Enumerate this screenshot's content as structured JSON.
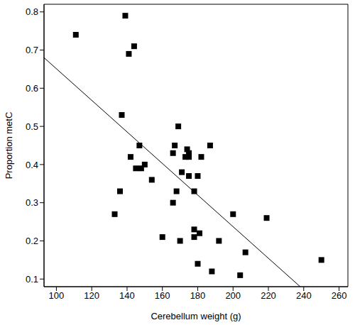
{
  "chart_data": {
    "type": "scatter",
    "x_label": "Cerebellum weight (g)",
    "y_label": "Proportion metC",
    "xlim": [
      93,
      265
    ],
    "ylim": [
      0.08,
      0.82
    ],
    "xticks": [
      100,
      120,
      140,
      160,
      180,
      200,
      220,
      240,
      260
    ],
    "yticks": [
      0.1,
      0.2,
      0.3,
      0.4,
      0.5,
      0.6,
      0.7,
      0.8
    ],
    "series": [
      {
        "type": "scatter",
        "marker": "square",
        "color": "#000000",
        "x": [
          111,
          139,
          141,
          144,
          137,
          136,
          133,
          142,
          147,
          145,
          148,
          150,
          154,
          160,
          166,
          167,
          166,
          168,
          169,
          171,
          170,
          173,
          174,
          175,
          175,
          175,
          178,
          178,
          178,
          180,
          181,
          182,
          180,
          187,
          188,
          192,
          200,
          204,
          207,
          219,
          250
        ],
        "values": [
          0.74,
          0.79,
          0.69,
          0.71,
          0.53,
          0.33,
          0.27,
          0.42,
          0.45,
          0.39,
          0.39,
          0.4,
          0.36,
          0.21,
          0.43,
          0.45,
          0.3,
          0.33,
          0.5,
          0.38,
          0.2,
          0.42,
          0.44,
          0.42,
          0.43,
          0.37,
          0.33,
          0.23,
          0.21,
          0.37,
          0.22,
          0.42,
          0.14,
          0.45,
          0.12,
          0.2,
          0.27,
          0.11,
          0.17,
          0.26,
          0.15
        ]
      },
      {
        "type": "line",
        "line_style": "solid",
        "color": "#000000",
        "x": [
          93,
          238
        ],
        "values": [
          0.68,
          0.08
        ]
      }
    ]
  }
}
